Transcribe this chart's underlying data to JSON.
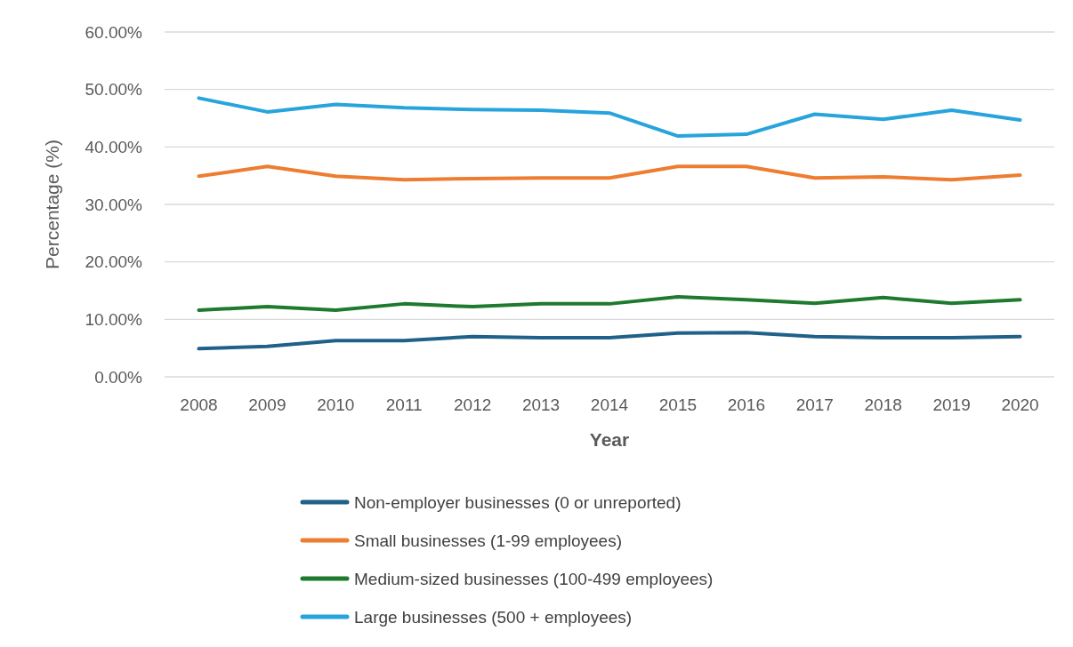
{
  "chart_data": {
    "type": "line",
    "xlabel": "Year",
    "ylabel": "Percentage (%)",
    "categories": [
      "2008",
      "2009",
      "2010",
      "2011",
      "2012",
      "2013",
      "2014",
      "2015",
      "2016",
      "2017",
      "2018",
      "2019",
      "2020"
    ],
    "series": [
      {
        "name": "Non-employer businesses (0 or unreported)",
        "color": "#1f6189",
        "values": [
          4.9,
          5.3,
          6.3,
          6.3,
          7.0,
          6.8,
          6.8,
          7.6,
          7.7,
          7.0,
          6.8,
          6.8,
          7.0
        ]
      },
      {
        "name": "Small businesses (1-99 employees)",
        "color": "#ed7d31",
        "values": [
          34.9,
          36.6,
          34.9,
          34.3,
          34.5,
          34.6,
          34.6,
          36.6,
          36.6,
          34.6,
          34.8,
          34.3,
          35.1
        ]
      },
      {
        "name": "Medium-sized businesses (100-499 employees)",
        "color": "#1e7a2e",
        "values": [
          11.6,
          12.2,
          11.6,
          12.7,
          12.2,
          12.7,
          12.7,
          13.9,
          13.4,
          12.8,
          13.8,
          12.8,
          13.4
        ]
      },
      {
        "name": "Large businesses (500 + employees)",
        "color": "#27a4dc",
        "values": [
          48.5,
          46.1,
          47.4,
          46.8,
          46.5,
          46.4,
          45.9,
          41.9,
          42.2,
          45.7,
          44.8,
          46.4,
          44.7
        ]
      }
    ],
    "ylim": [
      0,
      60
    ],
    "yticks": [
      {
        "value": 0,
        "label": "0.00%"
      },
      {
        "value": 10,
        "label": "10.00%"
      },
      {
        "value": 20,
        "label": "20.00%"
      },
      {
        "value": 30,
        "label": "30.00%"
      },
      {
        "value": 40,
        "label": "40.00%"
      },
      {
        "value": 50,
        "label": "50.00%"
      },
      {
        "value": 60,
        "label": "60.00%"
      }
    ],
    "grid": "y",
    "legend": "bottom",
    "marker": "none",
    "line_style": "solid"
  }
}
